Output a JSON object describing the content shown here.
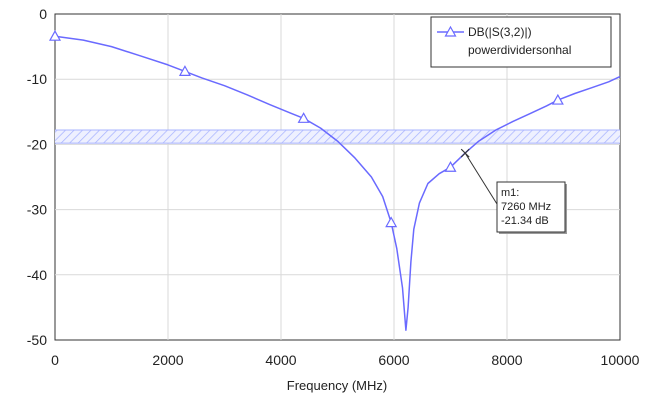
{
  "chart_data": {
    "type": "line",
    "title": "",
    "xlabel": "Frequency (MHz)",
    "ylabel": "",
    "xlim": [
      0,
      10000
    ],
    "ylim": [
      -50,
      0
    ],
    "xticks": [
      0,
      2000,
      4000,
      6000,
      8000,
      10000
    ],
    "yticks": [
      0,
      -10,
      -20,
      -30,
      -40,
      -50
    ],
    "grid": true,
    "legend_position": "top-right",
    "legend": [
      "DB(|S(3,2)|)",
      "powerdividersonhal"
    ],
    "series": [
      {
        "name": "DB(|S(3,2)|)",
        "color": "#6a6aff",
        "x": [
          0,
          500,
          1000,
          1500,
          2000,
          2300,
          2600,
          3000,
          3400,
          3800,
          4200,
          4400,
          4700,
          5000,
          5300,
          5600,
          5800,
          5950,
          6050,
          6150,
          6210,
          6250,
          6300,
          6350,
          6450,
          6600,
          6800,
          7000,
          7260,
          7500,
          7800,
          8100,
          8400,
          8700,
          8900,
          9200,
          9500,
          9800,
          10000
        ],
        "y": [
          -3.4,
          -4.0,
          -5.0,
          -6.4,
          -7.8,
          -8.8,
          -9.8,
          -11.0,
          -12.4,
          -13.9,
          -15.3,
          -16.0,
          -17.5,
          -19.5,
          -22.0,
          -25.0,
          -28.0,
          -32.0,
          -36.0,
          -42.0,
          -48.5,
          -45.0,
          -38.0,
          -33.0,
          -29.0,
          -26.0,
          -24.5,
          -23.5,
          -21.3,
          -19.5,
          -17.8,
          -16.5,
          -15.3,
          -14.1,
          -13.2,
          -12.2,
          -11.3,
          -10.4,
          -9.6
        ]
      }
    ],
    "triangle_markers": {
      "x": [
        0,
        2300,
        4400,
        5950,
        7000,
        8900
      ],
      "y": [
        -3.4,
        -8.8,
        -16.0,
        -32.0,
        -23.5,
        -13.2
      ]
    },
    "limit_band": {
      "y_top": -17.8,
      "y_bottom": -19.8
    },
    "marker": {
      "x": 7260,
      "y": -21.34,
      "lines": [
        "m1:",
        "7260 MHz",
        "-21.34 dB"
      ]
    }
  }
}
